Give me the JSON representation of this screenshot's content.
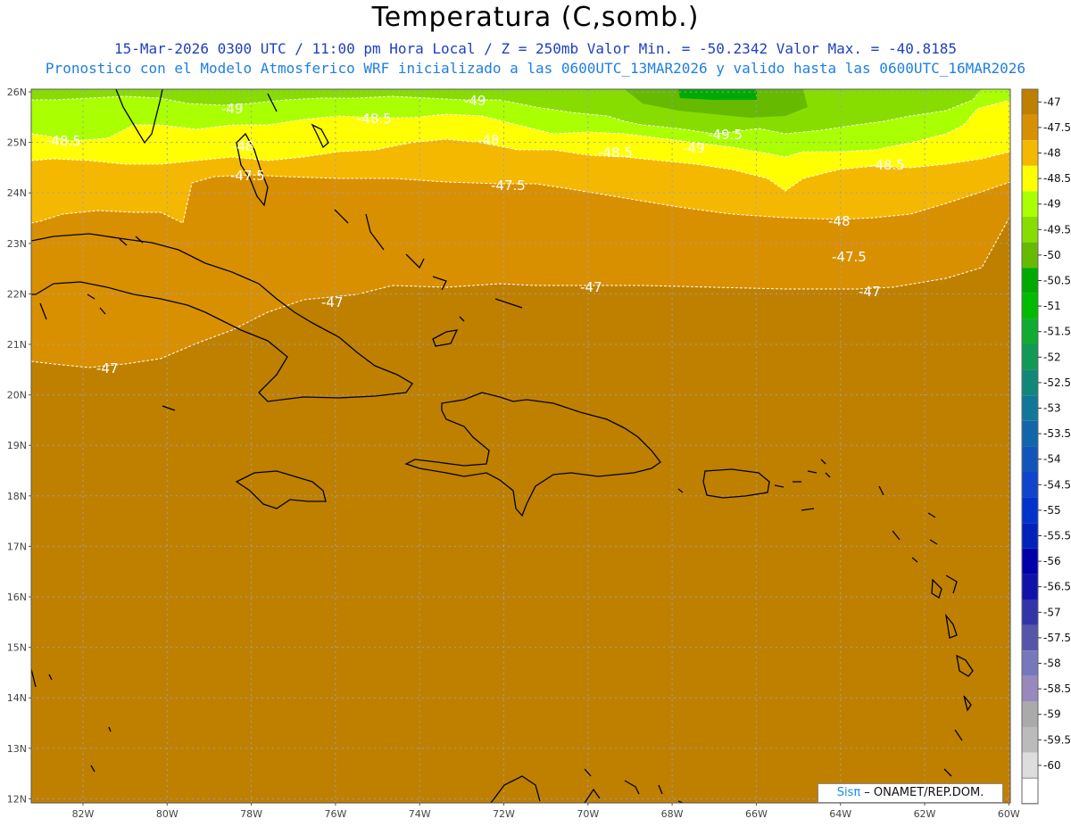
{
  "header": {
    "title": "Temperatura (C,somb.)",
    "subtitle1": "15-Mar-2026  0300 UTC / 11:00 pm Hora Local / Z = 250mb  Valor Min. = -50.2342  Valor Max. = -40.8185",
    "subtitle2": "Pronostico con el Modelo Atmosferico WRF inicializado a las 0600UTC_13MAR2026 y valido hasta las  0600UTC_16MAR2026"
  },
  "axes": {
    "lat_labels": [
      "26N",
      "25N",
      "24N",
      "23N",
      "22N",
      "21N",
      "20N",
      "19N",
      "18N",
      "17N",
      "16N",
      "15N",
      "14N",
      "13N",
      "12N"
    ],
    "lon_labels": [
      "82W",
      "80W",
      "78W",
      "76W",
      "74W",
      "72W",
      "70W",
      "68W",
      "66W",
      "64W",
      "62W",
      "60W"
    ]
  },
  "contour_labels": [
    "-49",
    "-48.5",
    "-48",
    "-47.5",
    "-47",
    "-49.5"
  ],
  "colorbar": {
    "labels": [
      "-47",
      "-47.5",
      "-48",
      "-48.5",
      "-49",
      "-49.5",
      "-50",
      "-50.5",
      "-51",
      "-51.5",
      "-52",
      "-52.5",
      "-53",
      "-53.5",
      "-54",
      "-54.5",
      "-55",
      "-55.5",
      "-56",
      "-56.5",
      "-57",
      "-57.5",
      "-58",
      "-58.5",
      "-59",
      "-59.5",
      "-60"
    ],
    "colors": [
      "#bf8000",
      "#d99000",
      "#f5b800",
      "#ffff00",
      "#aaff00",
      "#88dd00",
      "#66bb00",
      "#00aa00",
      "#00bb00",
      "#11aa33",
      "#119955",
      "#118877",
      "#117799",
      "#1166aa",
      "#1155bb",
      "#1144cc",
      "#0033cc",
      "#0022bb",
      "#0000aa",
      "#1111aa",
      "#3333aa",
      "#5555aa",
      "#7777bb",
      "#9988bb",
      "#aaaaaa",
      "#bbbbbb",
      "#dddddd"
    ]
  },
  "credit": {
    "brand": "Sisπ",
    "text": " – ONAMET/REP.DOM."
  }
}
